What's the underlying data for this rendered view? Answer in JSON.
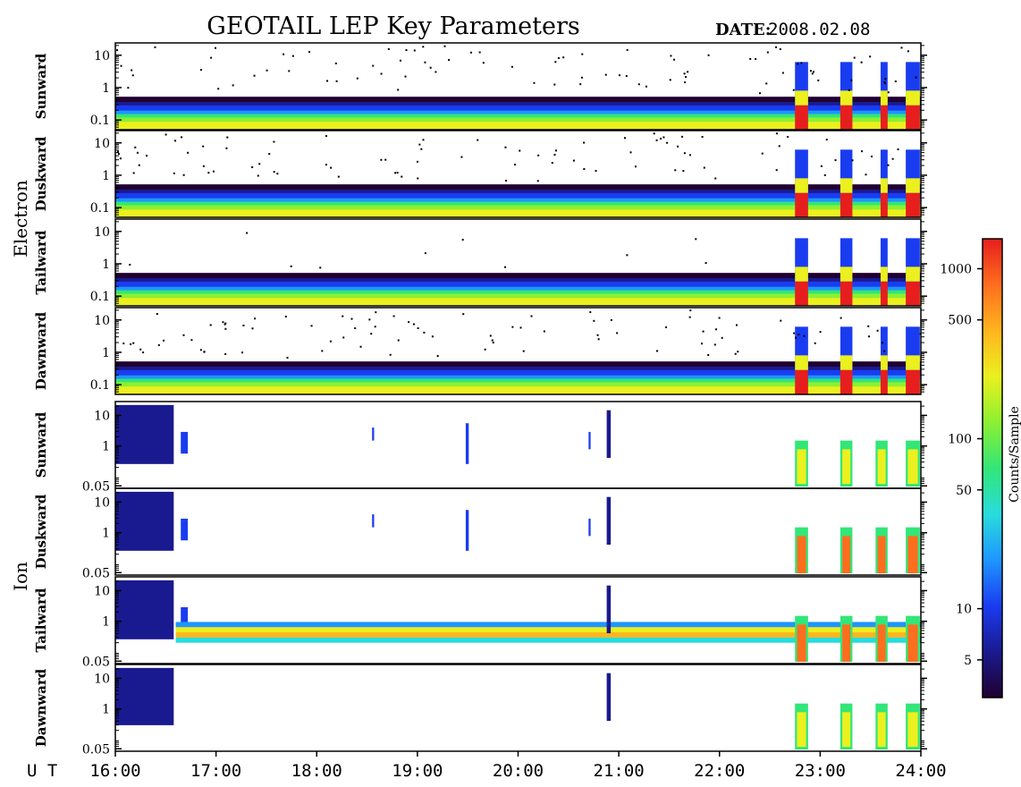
{
  "title": "GEOTAIL LEP Key Parameters",
  "date_label": "DATE:",
  "date_value": "2008.02.08",
  "time_axis_label": "U T",
  "colorbar_label": "Counts/Sample",
  "colors": {
    "frame": "#000000",
    "background": "#ffffff",
    "colormap": [
      "#200030",
      "#1a1a90",
      "#1a3cf0",
      "#1e96ff",
      "#28dcdc",
      "#32e678",
      "#8cf032",
      "#ebf01e",
      "#ffb41e",
      "#ff6e1e",
      "#e61e1e"
    ]
  },
  "chart_data": {
    "type": "heatmap",
    "x_ticks": [
      "16:00",
      "17:00",
      "18:00",
      "19:00",
      "20:00",
      "21:00",
      "22:00",
      "23:00",
      "24:00"
    ],
    "x_range_hours": [
      16,
      24
    ],
    "y_scale": "log",
    "colorbar": {
      "label": "Counts/Sample",
      "scale": "log",
      "range": [
        3,
        1500
      ],
      "ticks": [
        1000,
        500,
        100,
        50,
        10,
        5
      ]
    },
    "groups": [
      {
        "name": "Electron",
        "panels": [
          {
            "name": "Sunward",
            "y_ticks": [
              "10",
              "1",
              "0.1"
            ]
          },
          {
            "name": "Duskward",
            "y_ticks": [
              "10",
              "1",
              "0.1"
            ]
          },
          {
            "name": "Tailward",
            "y_ticks": [
              "10",
              "1",
              "0.1"
            ]
          },
          {
            "name": "Dawnward",
            "y_ticks": [
              "10",
              "1",
              "0.1"
            ]
          }
        ]
      },
      {
        "name": "Ion",
        "panels": [
          {
            "name": "Sunward",
            "y_ticks": [
              "10",
              "1",
              "0.05"
            ]
          },
          {
            "name": "Duskward",
            "y_ticks": [
              "10",
              "1",
              "0.05"
            ]
          },
          {
            "name": "Tailward",
            "y_ticks": [
              "10",
              "1",
              "0.05"
            ]
          },
          {
            "name": "Dawnward",
            "y_ticks": [
              "10",
              "1",
              "0.05"
            ]
          }
        ]
      }
    ]
  }
}
